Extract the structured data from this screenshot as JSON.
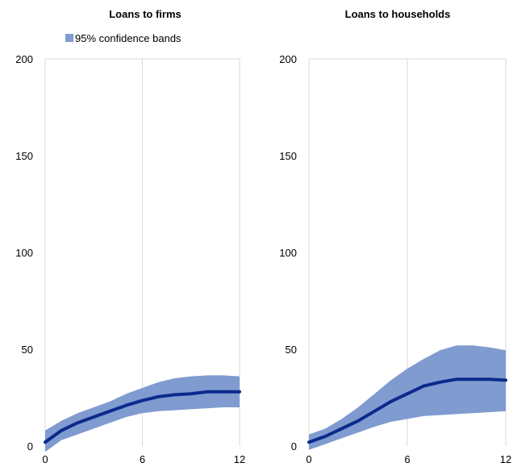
{
  "chart_data": [
    {
      "type": "area",
      "title": "Loans to firms",
      "x": [
        0,
        1,
        2,
        3,
        4,
        5,
        6,
        7,
        8,
        9,
        10,
        11,
        12
      ],
      "series": [
        {
          "name": "",
          "kind": "line",
          "values": [
            2,
            8,
            12,
            15,
            18,
            21,
            23.5,
            25.5,
            26.5,
            27,
            28,
            28,
            28
          ]
        },
        {
          "name": "95% confidence bands",
          "kind": "band",
          "lower": [
            -3,
            3,
            6,
            9,
            12,
            15,
            17,
            18,
            18.5,
            19,
            19.5,
            20,
            20
          ],
          "upper": [
            8,
            13,
            17,
            20,
            23,
            27,
            30,
            33,
            35,
            36,
            36.5,
            36.5,
            36
          ]
        }
      ],
      "xticks": [
        "0",
        "6",
        "12"
      ],
      "yticks": [
        "0",
        "50",
        "100",
        "150",
        "200"
      ],
      "xlim": [
        0,
        12
      ],
      "ylim": [
        0,
        200
      ],
      "grid": "vertical",
      "legend": "top"
    },
    {
      "type": "area",
      "title": "Loans to households",
      "x": [
        0,
        1,
        2,
        3,
        4,
        5,
        6,
        7,
        8,
        9,
        10,
        11,
        12
      ],
      "series": [
        {
          "name": "",
          "kind": "line",
          "values": [
            2,
            5,
            9,
            13,
            18,
            23,
            27,
            31,
            33,
            34.5,
            34.5,
            34.5,
            34
          ]
        },
        {
          "name": "95% confidence bands",
          "kind": "band",
          "lower": [
            -2,
            1,
            4,
            7,
            10,
            12.5,
            14,
            15.5,
            16,
            16.5,
            17,
            17.5,
            18
          ],
          "upper": [
            6,
            9,
            14,
            20,
            27,
            34,
            40,
            45,
            49.5,
            52,
            52,
            51,
            49.5
          ]
        }
      ],
      "xticks": [
        "0",
        "6",
        "12"
      ],
      "yticks": [
        "0",
        "50",
        "100",
        "150",
        "200"
      ],
      "xlim": [
        0,
        12
      ],
      "ylim": [
        0,
        200
      ],
      "grid": "vertical"
    }
  ],
  "colors": {
    "band": "#7f9bd0",
    "line": "#0b2a8c",
    "grid": "#d9d9d9"
  }
}
